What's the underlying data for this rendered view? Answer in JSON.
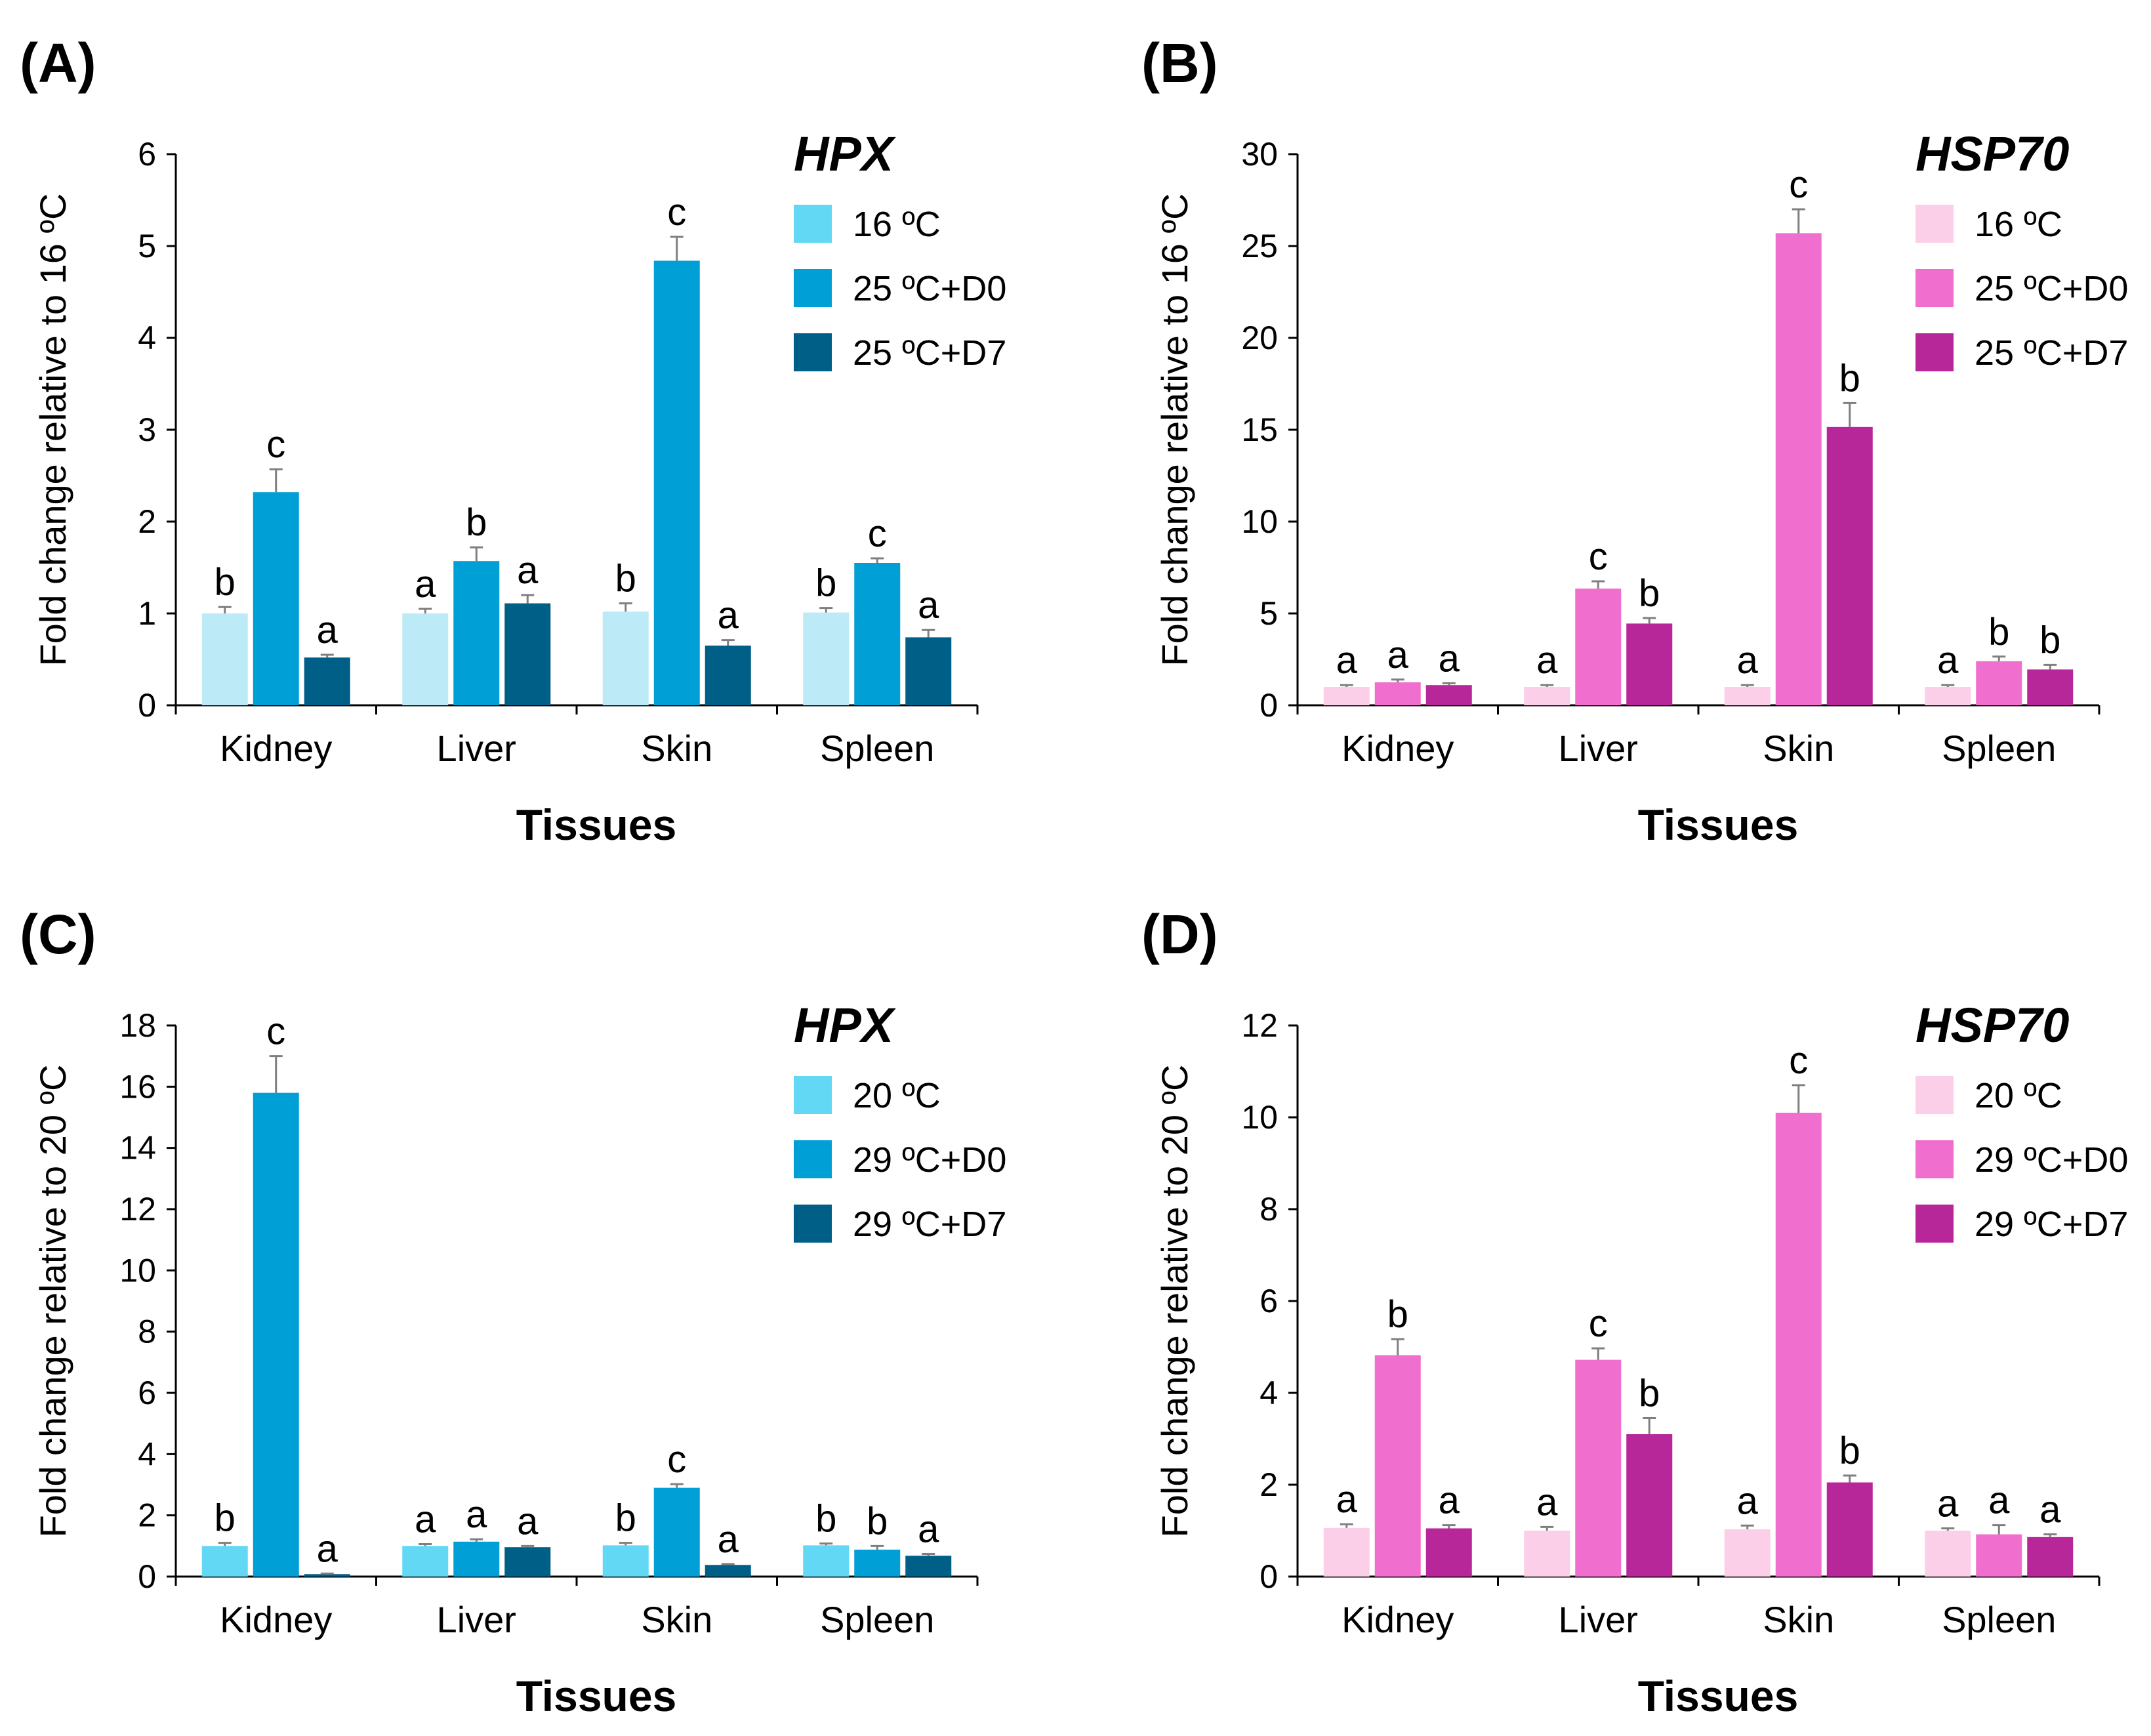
{
  "chart_data": [
    {
      "id": "A",
      "type": "bar",
      "panel_label": "(A)",
      "title": "HPX",
      "xlabel": "Tissues",
      "ylabel": "Fold change relative to 16 ºC",
      "ylim": [
        0,
        6
      ],
      "yticks": [
        0,
        1,
        2,
        3,
        4,
        5,
        6
      ],
      "categories": [
        "Kidney",
        "Liver",
        "Skin",
        "Spleen"
      ],
      "legend_position": "top-right",
      "series": [
        {
          "name": "16 ºC",
          "color": "#bdeaf7",
          "legend_color": "#62d8f5",
          "values": [
            1.0,
            1.0,
            1.02,
            1.01
          ],
          "errors": [
            0.07,
            0.05,
            0.09,
            0.05
          ],
          "letters": [
            "b",
            "a",
            "b",
            "b"
          ]
        },
        {
          "name": "25 ºC+D0",
          "color": "#009fd6",
          "legend_color": "#009fd6",
          "values": [
            2.32,
            1.57,
            4.84,
            1.55
          ],
          "errors": [
            0.25,
            0.15,
            0.26,
            0.05
          ],
          "letters": [
            "c",
            "b",
            "c",
            "c"
          ]
        },
        {
          "name": "25 ºC+D7",
          "color": "#005f86",
          "legend_color": "#005f86",
          "values": [
            0.52,
            1.11,
            0.65,
            0.74
          ],
          "errors": [
            0.03,
            0.09,
            0.06,
            0.08
          ],
          "letters": [
            "a",
            "a",
            "a",
            "a"
          ]
        }
      ]
    },
    {
      "id": "B",
      "type": "bar",
      "panel_label": "(B)",
      "title": "HSP70",
      "xlabel": "Tissues",
      "ylabel": "Fold change relative to 16 ºC",
      "ylim": [
        0,
        30
      ],
      "yticks": [
        0,
        5,
        10,
        15,
        20,
        25,
        30
      ],
      "categories": [
        "Kidney",
        "Liver",
        "Skin",
        "Spleen"
      ],
      "legend_position": "top-right",
      "series": [
        {
          "name": "16 ºC",
          "color": "#fbcfe8",
          "legend_color": "#fbcfe8",
          "values": [
            1.0,
            1.0,
            1.0,
            1.0
          ],
          "errors": [
            0.1,
            0.1,
            0.1,
            0.1
          ],
          "letters": [
            "a",
            "a",
            "a",
            "a"
          ]
        },
        {
          "name": "25 ºC+D0",
          "color": "#f06fce",
          "legend_color": "#f06fce",
          "values": [
            1.25,
            6.35,
            25.7,
            2.4
          ],
          "errors": [
            0.15,
            0.4,
            1.3,
            0.25
          ],
          "letters": [
            "a",
            "c",
            "c",
            "b"
          ]
        },
        {
          "name": "25 ºC+D7",
          "color": "#b82799",
          "legend_color": "#b82799",
          "values": [
            1.1,
            4.45,
            15.15,
            1.95
          ],
          "errors": [
            0.1,
            0.3,
            1.3,
            0.25
          ],
          "letters": [
            "a",
            "b",
            "b",
            "b"
          ]
        }
      ]
    },
    {
      "id": "C",
      "type": "bar",
      "panel_label": "(C)",
      "title": "HPX",
      "xlabel": "Tissues",
      "ylabel": "Fold change relative to 20 ºC",
      "ylim": [
        0,
        18
      ],
      "yticks": [
        0,
        2,
        4,
        6,
        8,
        10,
        12,
        14,
        16,
        18
      ],
      "categories": [
        "Kidney",
        "Liver",
        "Skin",
        "Spleen"
      ],
      "legend_position": "top-right",
      "series": [
        {
          "name": "20 ºC",
          "color": "#62d8f5",
          "legend_color": "#62d8f5",
          "values": [
            1.0,
            1.0,
            1.02,
            1.02
          ],
          "errors": [
            0.1,
            0.06,
            0.08,
            0.06
          ],
          "letters": [
            "b",
            "a",
            "b",
            "b"
          ]
        },
        {
          "name": "29 ºC+D0",
          "color": "#009fd6",
          "legend_color": "#009fd6",
          "values": [
            15.8,
            1.14,
            2.9,
            0.88
          ],
          "errors": [
            1.2,
            0.08,
            0.12,
            0.12
          ],
          "letters": [
            "c",
            "a",
            "c",
            "b"
          ]
        },
        {
          "name": "29 ºC+D7",
          "color": "#005f86",
          "legend_color": "#005f86",
          "values": [
            0.08,
            0.96,
            0.38,
            0.68
          ],
          "errors": [
            0.02,
            0.04,
            0.03,
            0.06
          ],
          "letters": [
            "a",
            "a",
            "a",
            "a"
          ]
        }
      ]
    },
    {
      "id": "D",
      "type": "bar",
      "panel_label": "(D)",
      "title": "HSP70",
      "xlabel": "Tissues",
      "ylabel": "Fold change relative to 20 ºC",
      "ylim": [
        0,
        12
      ],
      "yticks": [
        0,
        2,
        4,
        6,
        8,
        10,
        12
      ],
      "categories": [
        "Kidney",
        "Liver",
        "Skin",
        "Spleen"
      ],
      "legend_position": "top-right",
      "series": [
        {
          "name": "20 ºC",
          "color": "#fbcfe8",
          "legend_color": "#fbcfe8",
          "values": [
            1.06,
            1.0,
            1.03,
            1.0
          ],
          "errors": [
            0.08,
            0.08,
            0.08,
            0.05
          ],
          "letters": [
            "a",
            "a",
            "a",
            "a"
          ]
        },
        {
          "name": "29 ºC+D0",
          "color": "#f06fce",
          "legend_color": "#f06fce",
          "values": [
            4.82,
            4.72,
            10.1,
            0.92
          ],
          "errors": [
            0.35,
            0.25,
            0.6,
            0.2
          ],
          "letters": [
            "b",
            "c",
            "c",
            "a"
          ]
        },
        {
          "name": "29 ºC+D7",
          "color": "#b82799",
          "legend_color": "#b82799",
          "values": [
            1.05,
            3.1,
            2.05,
            0.86
          ],
          "errors": [
            0.07,
            0.35,
            0.15,
            0.06
          ],
          "letters": [
            "a",
            "b",
            "b",
            "a"
          ]
        }
      ]
    }
  ]
}
